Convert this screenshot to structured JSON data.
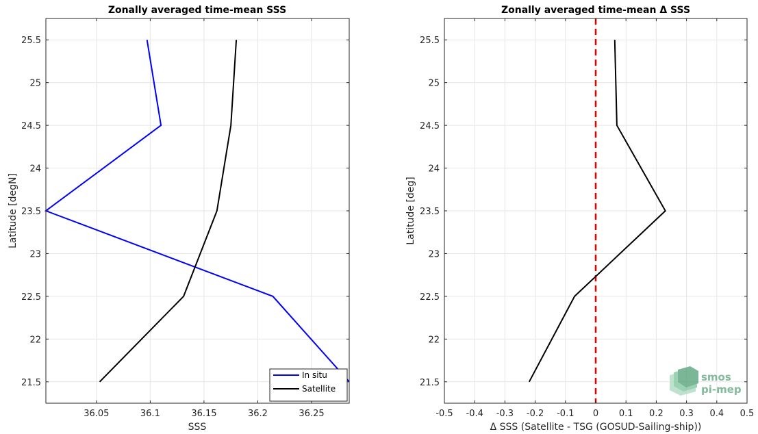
{
  "chart_data": [
    {
      "type": "line",
      "title": "Zonally averaged time-mean SSS",
      "xlabel": "SSS",
      "ylabel": "Latitude [degN]",
      "xlim": [
        36.003,
        36.285
      ],
      "ylim": [
        21.25,
        25.75
      ],
      "xticks": [
        36.05,
        36.1,
        36.15,
        36.2,
        36.25
      ],
      "xtick_labels": [
        "36.05",
        "36.1",
        "36.15",
        "36.2",
        "36.25"
      ],
      "yticks": [
        21.5,
        22,
        22.5,
        23,
        23.5,
        24,
        24.5,
        25,
        25.5
      ],
      "ytick_labels": [
        "21.5",
        "22",
        "22.5",
        "23",
        "23.5",
        "24",
        "24.5",
        "25",
        "25.5"
      ],
      "grid": true,
      "legend_position": "bottom-right",
      "series": [
        {
          "name": "In situ",
          "color": "#0000ff",
          "x": [
            36.285,
            36.214,
            36.003,
            36.11,
            36.097
          ],
          "y": [
            21.5,
            22.5,
            23.5,
            24.5,
            25.5
          ]
        },
        {
          "name": "Satellite",
          "color": "#000000",
          "x": [
            36.053,
            36.131,
            36.162,
            36.175,
            36.18
          ],
          "y": [
            21.5,
            22.5,
            23.5,
            24.5,
            25.5
          ]
        }
      ]
    },
    {
      "type": "line",
      "title": "Zonally averaged time-mean Δ SSS",
      "xlabel": "Δ SSS (Satellite - TSG (GOSUD-Sailing-ship))",
      "ylabel": "Latitude [deg]",
      "xlim": [
        -0.5,
        0.5
      ],
      "ylim": [
        21.25,
        25.75
      ],
      "xticks": [
        -0.5,
        -0.4,
        -0.3,
        -0.2,
        -0.1,
        0,
        0.1,
        0.2,
        0.3,
        0.4,
        0.5
      ],
      "xtick_labels": [
        "-0.5",
        "-0.4",
        "-0.3",
        "-0.2",
        "-0.1",
        "0",
        "0.1",
        "0.2",
        "0.3",
        "0.4",
        "0.5"
      ],
      "yticks": [
        21.5,
        22,
        22.5,
        23,
        23.5,
        24,
        24.5,
        25,
        25.5
      ],
      "ytick_labels": [
        "21.5",
        "22",
        "22.5",
        "23",
        "23.5",
        "24",
        "24.5",
        "25",
        "25.5"
      ],
      "grid": true,
      "reference_line": {
        "x": 0,
        "color": "#e60000",
        "style": "dashed"
      },
      "series": [
        {
          "color": "#000000",
          "x": [
            -0.22,
            -0.07,
            0.23,
            0.07,
            0.063
          ],
          "y": [
            21.5,
            22.5,
            23.5,
            24.5,
            25.5
          ]
        }
      ]
    }
  ],
  "watermark": {
    "line1": "smos",
    "line2": "pi-mep",
    "icon": "smos-pimep-logo-icon",
    "color": "#5aa47c"
  }
}
